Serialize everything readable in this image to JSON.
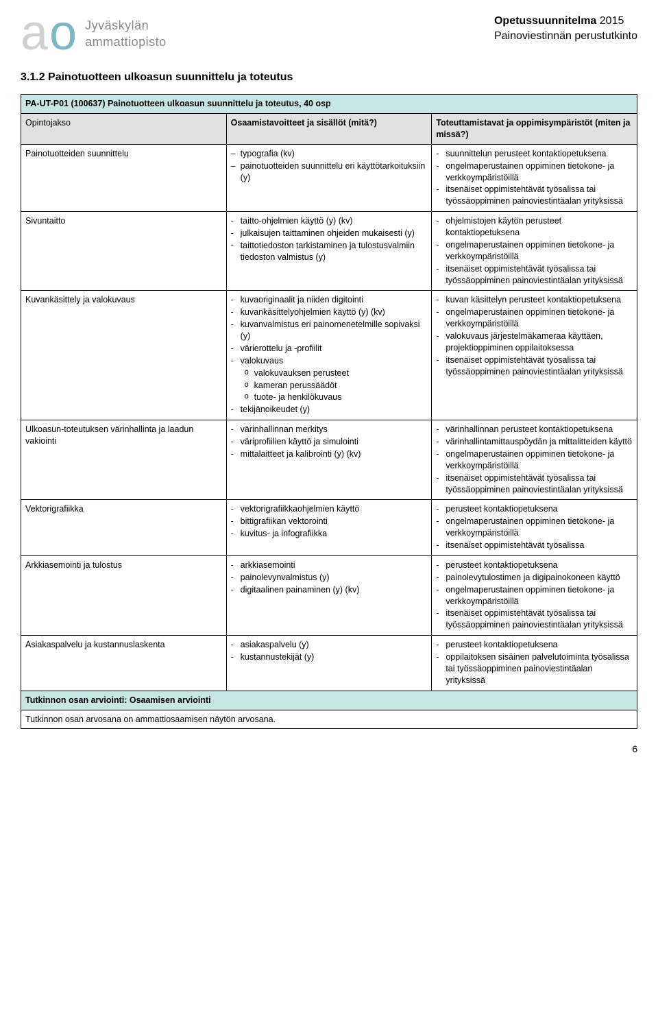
{
  "header": {
    "logo_text1": "Jyväskylän",
    "logo_text2": "ammattiopisto",
    "right_line1_bold": "Opetussuunnitelma",
    "right_line1_rest": " 2015",
    "right_line2": "Painoviestinnän perustutkinto"
  },
  "section_title": "3.1.2   Painotuotteen ulkoasun suunnittelu ja toteutus",
  "table": {
    "title_row": "PA-UT-P01 (100637) Painotuotteen ulkoasun suunnittelu ja toteutus, 40 osp",
    "header_col1": "Opintojakso",
    "header_col2": "Osaamistavoitteet ja sisällöt (mitä?)",
    "header_col3": "Toteuttamistavat ja oppimisympäristöt (miten ja missä?)",
    "rows": [
      {
        "c1": "Painotuotteiden suunnittelu",
        "c2_style": "dash",
        "c2": [
          "typografia (kv)",
          "painotuotteiden suunnittelu eri käyttötarkoituksiin (y)"
        ],
        "c3": [
          "suunnittelun perusteet kontaktiopetuksena",
          "ongelmaperustainen oppiminen tietokone- ja verkkoympäristöillä",
          "itsenäiset oppimistehtävät työsalissa tai työssäoppiminen painoviestintäalan yrityksissä"
        ]
      },
      {
        "c1": "Sivuntaitto",
        "c2": [
          "taitto-ohjelmien käyttö (y) (kv)",
          "julkaisujen taittaminen ohjeiden mukaisesti (y)",
          "taittotiedoston tarkistaminen ja tulostusvalmiin tiedoston valmistus (y)"
        ],
        "c3": [
          "ohjelmistojen käytön perusteet kontaktiopetuksena",
          "ongelmaperustainen oppiminen tietokone- ja verkkoympäristöillä",
          "itsenäiset oppimistehtävät työsalissa tai työssäoppiminen painoviestintäalan yrityksissä"
        ]
      },
      {
        "c1": "Kuvankäsittely ja valokuvaus",
        "c2": [
          "kuvaoriginaalit ja niiden digitointi",
          "kuvankäsittelyohjelmien käyttö (y) (kv)",
          "kuvanvalmistus eri painomenetelmille sopivaksi (y)",
          "värierottelu ja -profiilit",
          "valokuvaus"
        ],
        "c2_sub": [
          "valokuvauksen perusteet",
          "kameran perussäädöt",
          "tuote- ja henkilökuvaus"
        ],
        "c2_after": [
          "tekijänoikeudet (y)"
        ],
        "c3": [
          "kuvan käsittelyn perusteet kontaktiopetuksena",
          "ongelmaperustainen oppiminen tietokone- ja verkkoympäristöillä",
          "valokuvaus järjestelmäkameraa käyttäen, projektioppiminen oppilaitoksessa",
          "itsenäiset oppimistehtävät työsalissa tai työssäoppiminen painoviestintäalan yrityksissä"
        ]
      },
      {
        "c1": "Ulkoasun-toteutuksen värinhallinta ja laadun vakiointi",
        "c2": [
          "värinhallinnan merkitys",
          "väriprofiilien käyttö ja simulointi",
          "mittalaitteet ja kalibrointi (y) (kv)"
        ],
        "c3": [
          "värinhallinnan perusteet kontaktiopetuksena",
          "värinhallintamittauspöydän ja mittalitteiden käyttö",
          "ongelmaperustainen oppiminen tietokone- ja verkkoympäristöillä",
          "itsenäiset oppimistehtävät työsalissa tai työssäoppiminen painoviestintäalan yrityksissä"
        ]
      },
      {
        "c1": "Vektorigrafiikka",
        "c2": [
          "vektorigrafiikkaohjelmien käyttö",
          "bittigrafiikan vektorointi",
          "kuvitus- ja infografiikka"
        ],
        "c3": [
          "perusteet kontaktiopetuksena",
          "ongelmaperustainen oppiminen tietokone- ja verkkoympäristöillä",
          "itsenäiset oppimistehtävät työsalissa"
        ]
      },
      {
        "c1": "Arkkiasemointi ja tulostus",
        "c2": [
          "arkkiasemointi",
          "painolevynvalmistus (y)",
          "digitaalinen painaminen (y) (kv)"
        ],
        "c3": [
          "perusteet kontaktiopetuksena",
          "painolevytulostimen ja digipainokoneen käyttö",
          "ongelmaperustainen oppiminen tietokone- ja verkkoympäristöillä",
          "itsenäiset oppimistehtävät työsalissa tai työssäoppiminen painoviestintäalan yrityksissä"
        ]
      },
      {
        "c1": "Asiakaspalvelu ja kustannuslaskenta",
        "c2": [
          "asiakaspalvelu (y)",
          "kustannustekijät (y)"
        ],
        "c3": [
          "perusteet kontaktiopetuksena",
          "oppilaitoksen sisäinen palvelutoiminta työsalissa tai työssäoppiminen painoviestintäalan yrityksissä"
        ]
      }
    ],
    "footer_row": "Tutkinnon osan arviointi: Osaamisen arviointi",
    "final_row": "Tutkinnon osan arvosana on ammattiosaamisen näytön arvosana."
  },
  "page_number": "6"
}
